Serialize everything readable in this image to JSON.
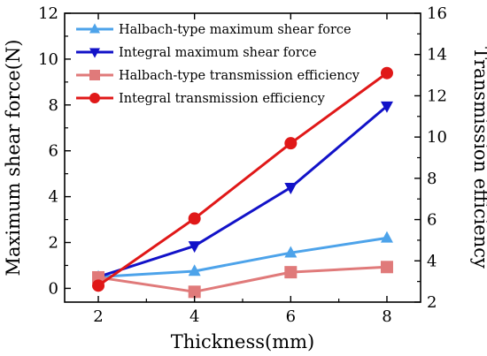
{
  "chart_data": {
    "type": "line",
    "xlabel": "Thickness(mm)",
    "ylabel": "Maximum shear force(N)",
    "y2label": "Transmission efficiency",
    "x": [
      2,
      4,
      6,
      8
    ],
    "xlim": [
      1.3,
      8.7
    ],
    "xticks": [
      2,
      4,
      6,
      8
    ],
    "ylim": [
      -0.6,
      12
    ],
    "yticks": [
      0,
      2,
      4,
      6,
      8,
      10,
      12
    ],
    "y2lim": [
      2,
      16
    ],
    "y2ticks": [
      2,
      4,
      6,
      8,
      10,
      12,
      14,
      16
    ],
    "grid": false,
    "legend_position": "top-left",
    "series": [
      {
        "name": "Halbach-type maximum shear force",
        "axis": "left",
        "marker": "triangle-up",
        "color": "#4da3ea",
        "values": [
          0.5,
          0.75,
          1.55,
          2.2
        ]
      },
      {
        "name": "Integral maximum shear force",
        "axis": "left",
        "marker": "triangle-down",
        "color": "#1212c8",
        "values": [
          0.5,
          1.85,
          4.4,
          7.95
        ]
      },
      {
        "name": "Halbach-type transmission efficiency",
        "axis": "right",
        "marker": "square",
        "color": "#e07a7a",
        "values": [
          3.2,
          2.5,
          3.45,
          3.7
        ]
      },
      {
        "name": "Integral transmission efficiency",
        "axis": "right",
        "marker": "circle",
        "color": "#e01818",
        "values": [
          2.8,
          6.05,
          9.7,
          13.1
        ]
      }
    ]
  }
}
